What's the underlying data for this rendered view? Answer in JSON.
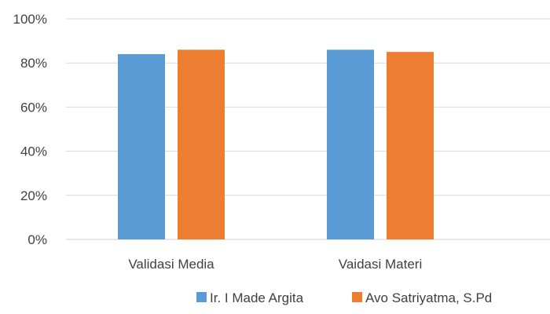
{
  "chart_data": {
    "type": "bar",
    "categories": [
      "Validasi Media",
      "Vaidasi Materi"
    ],
    "series": [
      {
        "name": "Ir. I Made Argita",
        "values": [
          84,
          86
        ],
        "color": "#5B9BD5"
      },
      {
        "name": "Avo Satriyatma, S.Pd",
        "values": [
          86,
          85
        ],
        "color": "#ED7D31"
      }
    ],
    "ylim": [
      0,
      100
    ],
    "y_ticks": [
      0,
      20,
      40,
      60,
      80,
      100
    ],
    "y_tick_labels": [
      "0%",
      "20%",
      "40%",
      "60%",
      "80%",
      "100%"
    ],
    "grid": true,
    "legend_position": "bottom-right"
  }
}
